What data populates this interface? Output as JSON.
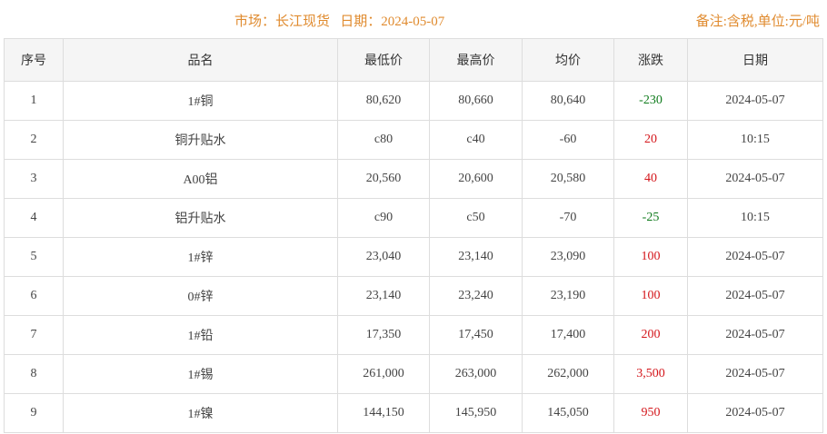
{
  "header": {
    "title": "市场：长江现货   日期：2024-05-07",
    "note": "备注:含税,单位:元/吨"
  },
  "colors": {
    "accent": "#e08b2f",
    "up": "#d4161b",
    "down": "#0d7a1a"
  },
  "table": {
    "columns": [
      "序号",
      "品名",
      "最低价",
      "最高价",
      "均价",
      "涨跌",
      "日期"
    ],
    "rows": [
      [
        "1",
        "1#铜",
        "80,620",
        "80,660",
        "80,640",
        "-230",
        "2024-05-07"
      ],
      [
        "2",
        "铜升贴水",
        "c80",
        "c40",
        "-60",
        "20",
        "10:15"
      ],
      [
        "3",
        "A00铝",
        "20,560",
        "20,600",
        "20,580",
        "40",
        "2024-05-07"
      ],
      [
        "4",
        "铝升贴水",
        "c90",
        "c50",
        "-70",
        "-25",
        "10:15"
      ],
      [
        "5",
        "1#锌",
        "23,040",
        "23,140",
        "23,090",
        "100",
        "2024-05-07"
      ],
      [
        "6",
        "0#锌",
        "23,140",
        "23,240",
        "23,190",
        "100",
        "2024-05-07"
      ],
      [
        "7",
        "1#铅",
        "17,350",
        "17,450",
        "17,400",
        "200",
        "2024-05-07"
      ],
      [
        "8",
        "1#锡",
        "261,000",
        "263,000",
        "262,000",
        "3,500",
        "2024-05-07"
      ],
      [
        "9",
        "1#镍",
        "144,150",
        "145,950",
        "145,050",
        "950",
        "2024-05-07"
      ]
    ]
  }
}
